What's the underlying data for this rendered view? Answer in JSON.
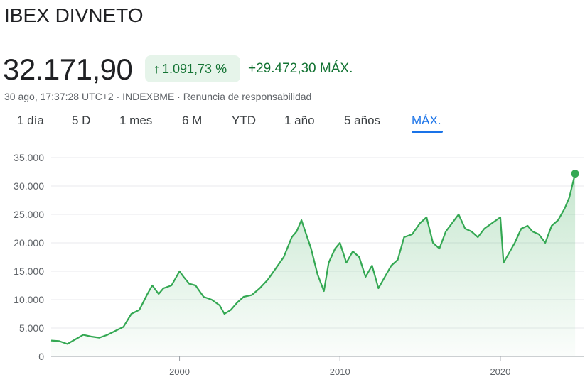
{
  "header": {
    "title": "IBEX DIVNETO",
    "price": "32.171,90",
    "change_percent": "1.091,73 %",
    "change_arrow_icon": "arrow-up-icon",
    "change_abs": "+29.472,30 MÁX.",
    "meta": "30 ago, 17:37:28 UTC+2 · INDEXBME · Renuncia de responsabilidad"
  },
  "tabs": [
    {
      "label": "1 día"
    },
    {
      "label": "5 D"
    },
    {
      "label": "1 mes"
    },
    {
      "label": "6 M"
    },
    {
      "label": "YTD"
    },
    {
      "label": "1 año"
    },
    {
      "label": "5 años"
    },
    {
      "label": "MÁX.",
      "active": true
    }
  ],
  "colors": {
    "accent": "#1a73e8",
    "up_green": "#137333",
    "line_green": "#34a853",
    "chip_bg": "#e6f4ea"
  },
  "chart_data": {
    "type": "area",
    "title": "",
    "xlabel": "",
    "ylabel": "",
    "yticks": [
      "35.000",
      "30.000",
      "25.000",
      "20.000",
      "15.000",
      "10.000",
      "5.000",
      "0"
    ],
    "xticks": [
      "2000",
      "2010",
      "2020"
    ],
    "ylim": [
      0,
      35000
    ],
    "xlim": [
      1992.0,
      2024.7
    ],
    "grid": true,
    "series": [
      {
        "x": [
          1992.0,
          1992.5,
          1993.0,
          1993.5,
          1994.0,
          1994.5,
          1995.0,
          1995.5,
          1996.0,
          1996.5,
          1997.0,
          1997.5,
          1998.0,
          1998.3,
          1998.7,
          1999.0,
          1999.5,
          2000.0,
          2000.2,
          2000.6,
          2001.0,
          2001.5,
          2002.0,
          2002.5,
          2002.8,
          2003.2,
          2003.6,
          2004.0,
          2004.5,
          2005.0,
          2005.5,
          2006.0,
          2006.5,
          2007.0,
          2007.3,
          2007.6,
          2007.9,
          2008.2,
          2008.6,
          2009.0,
          2009.3,
          2009.7,
          2010.0,
          2010.4,
          2010.8,
          2011.2,
          2011.6,
          2012.0,
          2012.4,
          2012.8,
          2013.2,
          2013.6,
          2014.0,
          2014.5,
          2015.0,
          2015.4,
          2015.8,
          2016.2,
          2016.6,
          2017.0,
          2017.4,
          2017.8,
          2018.2,
          2018.6,
          2019.0,
          2019.5,
          2020.0,
          2020.2,
          2020.5,
          2020.9,
          2021.3,
          2021.7,
          2022.0,
          2022.4,
          2022.8,
          2023.2,
          2023.6,
          2024.0,
          2024.3,
          2024.66
        ],
        "values": [
          2800,
          2700,
          2200,
          3000,
          3800,
          3500,
          3300,
          3800,
          4500,
          5200,
          7500,
          8200,
          11000,
          12500,
          11000,
          12000,
          12500,
          15000,
          14200,
          12800,
          12500,
          10500,
          10000,
          9000,
          7500,
          8200,
          9500,
          10500,
          10800,
          12000,
          13500,
          15500,
          17500,
          21000,
          22000,
          24000,
          21500,
          19000,
          14500,
          11500,
          16500,
          19000,
          20000,
          16500,
          18500,
          17500,
          14000,
          16000,
          12000,
          14000,
          16000,
          17000,
          21000,
          21500,
          23500,
          24500,
          20000,
          19000,
          22000,
          23500,
          25000,
          22500,
          22000,
          21000,
          22500,
          23500,
          24500,
          16500,
          18000,
          20000,
          22500,
          23000,
          22000,
          21500,
          20000,
          23000,
          24000,
          26000,
          28000,
          32171.9
        ]
      }
    ]
  }
}
